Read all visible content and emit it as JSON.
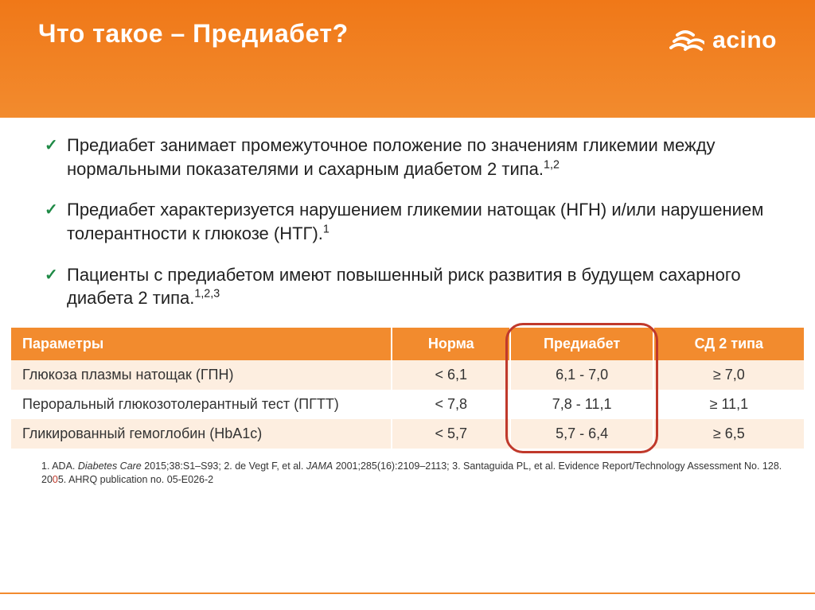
{
  "colors": {
    "header_gradient_top": "#f07818",
    "header_gradient_bottom": "#f28b2e",
    "accent": "#f28b2e",
    "checkmark": "#1f8a46",
    "highlight_border": "#c0392b",
    "row_odd_bg": "#fdeee0",
    "row_even_bg": "#ffffff",
    "text": "#222222",
    "white": "#ffffff"
  },
  "typography": {
    "title_fontsize": 32,
    "body_fontsize": 22,
    "table_fontsize": 18,
    "footnote_fontsize": 12.5,
    "font_family": "Verdana, Arial, sans-serif"
  },
  "header": {
    "title": "Что такое – Предиабет?",
    "logo_text": "acino",
    "logo_icon_name": "acino-waves-icon"
  },
  "bullets": [
    {
      "text": "Предиабет занимает промежуточное положение по значениям гликемии между нормальными показателями и сахарным диабетом 2 типа.",
      "sup": "1,2"
    },
    {
      "text": "Предиабет характеризуется нарушением гликемии натощак (НГН) и/или нарушением толерантности к глюкозе (НТГ).",
      "sup": "1"
    },
    {
      "text": "Пациенты с предиабетом имеют повышенный риск развития в будущем сахарного диабета 2 типа.",
      "sup": "1,2,3"
    }
  ],
  "table": {
    "type": "table",
    "column_widths_pct": [
      48,
      15,
      18,
      19
    ],
    "header_bg": "#f28b2e",
    "header_text_color": "#ffffff",
    "columns": [
      "Параметры",
      "Норма",
      "Предиабет",
      "СД 2 типа"
    ],
    "rows": [
      [
        "Глюкоза плазмы натощак (ГПН)",
        "< 6,1",
        "6,1 -  7,0",
        "≥ 7,0"
      ],
      [
        "Пероральный глюкозотолерантный тест (ПГТТ)",
        "< 7,8",
        "7,8 - 11,1",
        "≥ 11,1"
      ],
      [
        "Гликированный гемоглобин (HbA1c)",
        "< 5,7",
        "5,7 - 6,4",
        "≥ 6,5"
      ]
    ],
    "highlight": {
      "column_index": 2,
      "border_color": "#c0392b",
      "border_width": 3,
      "border_radius": 22
    }
  },
  "footnote": {
    "part1": "1. ADA. ",
    "italic1": "Diabetes Care",
    "part2": " 2015;38:S1–S93; 2. de Vegt F, et al. ",
    "italic2": "JAMA",
    "part3": " 2001;285(16):2109–2113; 3. Santaguida PL, et al. Evidence Report/Technology Assessment No. 128. 20",
    "red_digit": "0",
    "part4": "5. AHRQ publication no. 05-E026-2"
  }
}
